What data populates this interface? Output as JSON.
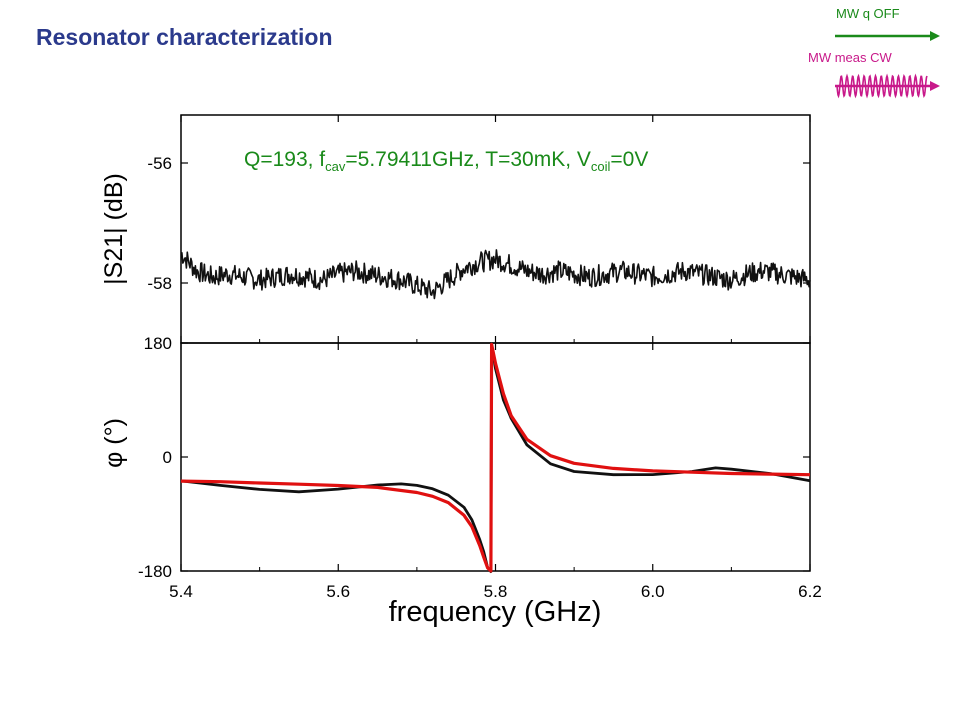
{
  "slide": {
    "title": "Resonator characterization"
  },
  "legend_signals": {
    "qubit_label": "MW q OFF",
    "qubit_color": "#1a8a1a",
    "meas_label": "MW meas CW",
    "meas_color": "#c8198a"
  },
  "chart_data": {
    "type": "line",
    "annotation": {
      "q_part": "Q=193, f",
      "cav_sub": "cav",
      "fcav_part": "=5.79411GHz, T=30mK, V",
      "coil_sub": "coil",
      "vcoil_part": "=0V",
      "color": "#1a8a1a"
    },
    "xlabel": "frequency (GHz)",
    "xlim": [
      5.4,
      6.2
    ],
    "xticks": [
      "5.4",
      "5.6",
      "5.8",
      "6.0",
      "6.2"
    ],
    "xtick_values": [
      5.4,
      5.6,
      5.8,
      6.0,
      6.2
    ],
    "panels": [
      {
        "name": "magnitude",
        "ylabel": "|S21| (dB)",
        "ylim": [
          -59.0,
          -55.2
        ],
        "yticks": [
          "-56",
          "-58"
        ],
        "ytick_values": [
          -56,
          -58
        ],
        "series": [
          {
            "color": "#111111",
            "x": [
              5.4,
              5.42,
              5.44,
              5.46,
              5.48,
              5.5,
              5.52,
              5.54,
              5.56,
              5.58,
              5.6,
              5.62,
              5.64,
              5.66,
              5.68,
              5.7,
              5.72,
              5.74,
              5.76,
              5.78,
              5.8,
              5.82,
              5.84,
              5.86,
              5.88,
              5.9,
              5.92,
              5.94,
              5.96,
              5.98,
              6.0,
              6.02,
              6.04,
              6.06,
              6.08,
              6.1,
              6.12,
              6.14,
              6.16,
              6.18,
              6.2
            ],
            "y": [
              -57.5,
              -57.8,
              -57.9,
              -57.85,
              -57.9,
              -57.95,
              -57.9,
              -57.85,
              -57.9,
              -57.95,
              -57.85,
              -57.8,
              -57.85,
              -57.9,
              -57.95,
              -58.05,
              -58.15,
              -57.95,
              -57.75,
              -57.65,
              -57.6,
              -57.7,
              -57.8,
              -57.85,
              -57.8,
              -57.85,
              -57.9,
              -57.85,
              -57.8,
              -57.85,
              -57.9,
              -57.85,
              -57.8,
              -57.85,
              -57.9,
              -57.95,
              -57.85,
              -57.8,
              -57.85,
              -57.9,
              -57.95
            ]
          }
        ]
      },
      {
        "name": "phase",
        "ylabel": "φ (°)",
        "ylim": [
          -180,
          180
        ],
        "yticks": [
          "180",
          "0",
          "-180"
        ],
        "ytick_values": [
          180,
          0,
          -180
        ],
        "series": [
          {
            "name": "measured",
            "color": "#111111",
            "x": [
              5.4,
              5.45,
              5.5,
              5.55,
              5.6,
              5.65,
              5.68,
              5.7,
              5.72,
              5.74,
              5.76,
              5.77,
              5.78,
              5.785,
              5.79,
              5.7941,
              5.795,
              5.8,
              5.81,
              5.82,
              5.84,
              5.87,
              5.9,
              5.95,
              6.0,
              6.05,
              6.08,
              6.1,
              6.15,
              6.2
            ],
            "y": [
              -38,
              -45,
              -52,
              -55,
              -50,
              -45,
              -42,
              -44,
              -50,
              -60,
              -80,
              -100,
              -130,
              -150,
              -175,
              -180,
              178,
              140,
              90,
              60,
              20,
              -10,
              -22,
              -28,
              -27,
              -22,
              -18,
              -20,
              -26,
              -38
            ]
          },
          {
            "name": "fit",
            "color": "#e01010",
            "x": [
              5.4,
              5.45,
              5.5,
              5.55,
              5.6,
              5.65,
              5.7,
              5.72,
              5.74,
              5.76,
              5.77,
              5.78,
              5.785,
              5.79,
              5.7941,
              5.795,
              5.8,
              5.81,
              5.82,
              5.84,
              5.87,
              5.9,
              5.95,
              6.0,
              6.05,
              6.1,
              6.15,
              6.2
            ],
            "y": [
              -38,
              -39,
              -41,
              -43,
              -45,
              -48,
              -56,
              -62,
              -72,
              -92,
              -110,
              -140,
              -158,
              -175,
              -180,
              178,
              148,
              100,
              65,
              28,
              2,
              -10,
              -18,
              -22,
              -24,
              -26,
              -27,
              -28
            ]
          }
        ]
      }
    ]
  }
}
